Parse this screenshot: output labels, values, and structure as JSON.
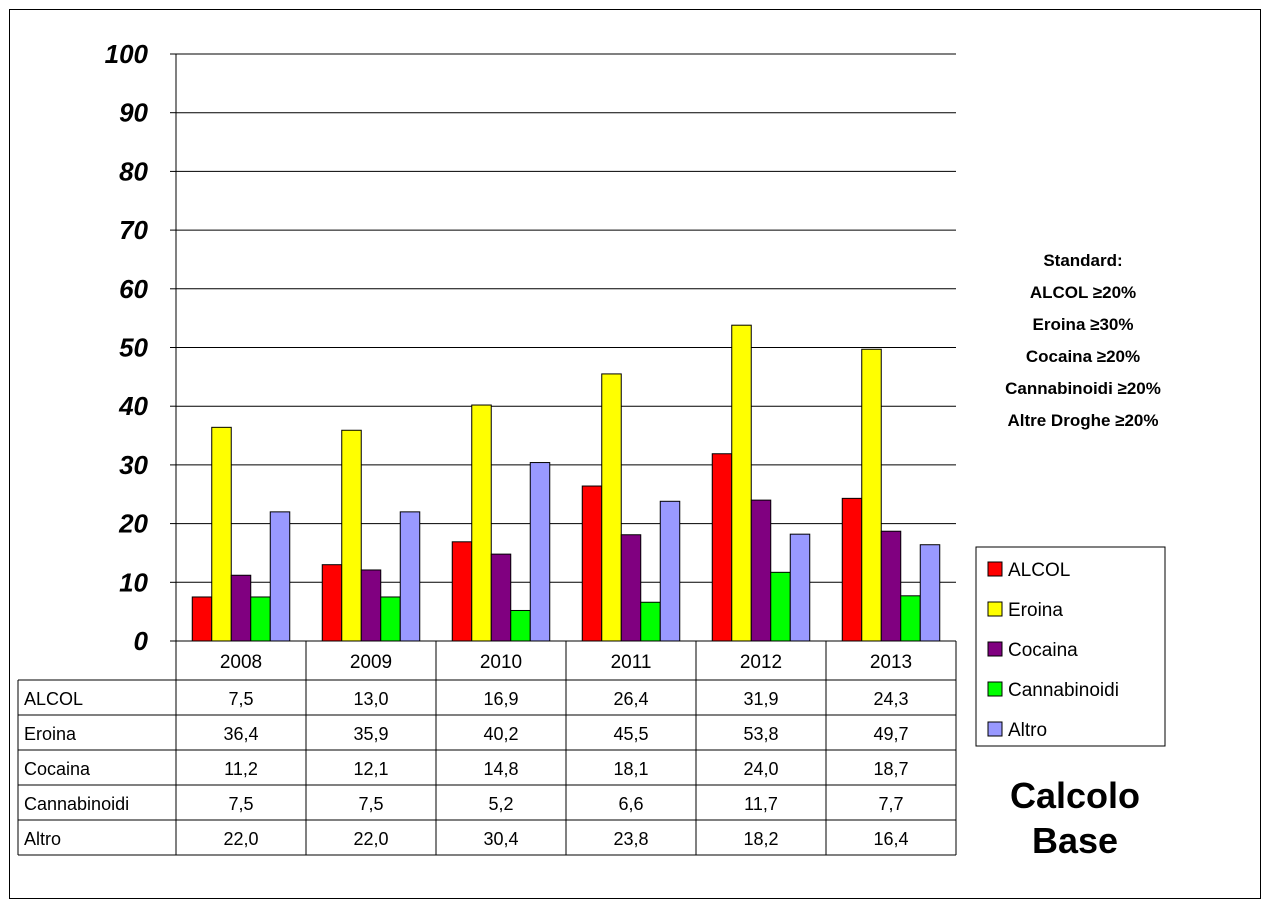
{
  "chart_data": {
    "type": "bar",
    "categories": [
      "2008",
      "2009",
      "2010",
      "2011",
      "2012",
      "2013"
    ],
    "series": [
      {
        "name": "ALCOL",
        "values": [
          7.5,
          13.0,
          16.9,
          26.4,
          31.9,
          24.3
        ],
        "labels": [
          "7,5",
          "13,0",
          "16,9",
          "26,4",
          "31,9",
          "24,3"
        ]
      },
      {
        "name": "Eroina",
        "values": [
          36.4,
          35.9,
          40.2,
          45.5,
          53.8,
          49.7
        ],
        "labels": [
          "36,4",
          "35,9",
          "40,2",
          "45,5",
          "53,8",
          "49,7"
        ]
      },
      {
        "name": "Cocaina",
        "values": [
          11.2,
          12.1,
          14.8,
          18.1,
          24.0,
          18.7
        ],
        "labels": [
          "11,2",
          "12,1",
          "14,8",
          "18,1",
          "24,0",
          "18,7"
        ]
      },
      {
        "name": "Cannabinoidi",
        "values": [
          7.5,
          7.5,
          5.2,
          6.6,
          11.7,
          7.7
        ],
        "labels": [
          "7,5",
          "7,5",
          "5,2",
          "6,6",
          "11,7",
          "7,7"
        ]
      },
      {
        "name": "Altro",
        "values": [
          22.0,
          22.0,
          30.4,
          23.8,
          18.2,
          16.4
        ],
        "labels": [
          "22,0",
          "22,0",
          "30,4",
          "23,8",
          "18,2",
          "16,4"
        ]
      }
    ],
    "colors": [
      "#ff0000",
      "#ffff00",
      "#800080",
      "#00ff00",
      "#9999ff"
    ],
    "ylim": [
      0,
      100
    ],
    "yticks": [
      "0",
      "10",
      "20",
      "30",
      "40",
      "50",
      "60",
      "70",
      "80",
      "90",
      "100"
    ],
    "grid": true,
    "legend_position": "right",
    "data_table": true
  },
  "annotations": {
    "standard_lines": [
      "Standard:",
      "ALCOL ≥20%",
      "Eroina ≥30%",
      "Cocaina ≥20%",
      "Cannabinoidi ≥20%",
      "Altre Droghe ≥20%"
    ],
    "calc_lines": [
      "Calcolo",
      "Base"
    ]
  }
}
